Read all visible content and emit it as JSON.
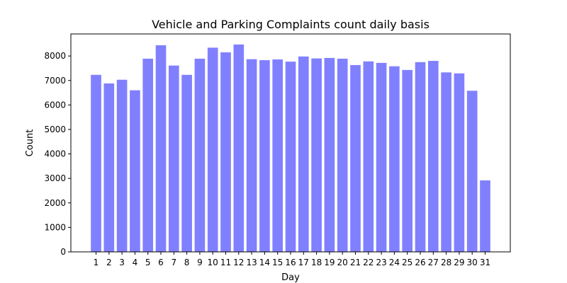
{
  "chart_data": {
    "type": "bar",
    "title": "Vehicle and Parking Complaints count daily basis",
    "xlabel": "Day",
    "ylabel": "Count",
    "categories": [
      "1",
      "2",
      "3",
      "4",
      "5",
      "6",
      "7",
      "8",
      "9",
      "10",
      "11",
      "12",
      "13",
      "14",
      "15",
      "16",
      "17",
      "18",
      "19",
      "20",
      "21",
      "22",
      "23",
      "24",
      "25",
      "26",
      "27",
      "28",
      "29",
      "30",
      "31"
    ],
    "values": [
      7230,
      6880,
      7030,
      6600,
      7890,
      8440,
      7610,
      7230,
      7890,
      8340,
      8150,
      8470,
      7870,
      7830,
      7860,
      7770,
      7980,
      7900,
      7920,
      7890,
      7630,
      7780,
      7720,
      7580,
      7430,
      7750,
      7800,
      7330,
      7290,
      6580,
      2920
    ],
    "ylim": [
      0,
      8900
    ],
    "yticks": [
      0,
      1000,
      2000,
      3000,
      4000,
      5000,
      6000,
      7000,
      8000
    ],
    "bar_color": "#8080ff",
    "grid": false,
    "legend": "none"
  }
}
